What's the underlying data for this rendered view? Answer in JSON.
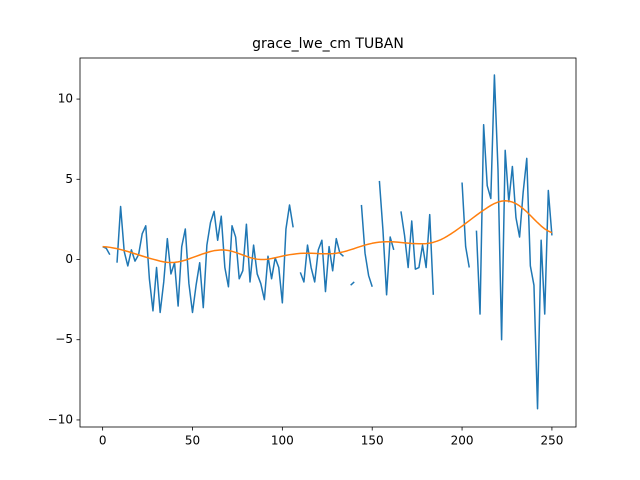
{
  "chart_data": {
    "type": "line",
    "title": "grace_lwe_cm TUBAN",
    "x": [
      0,
      2,
      4,
      6,
      8,
      10,
      12,
      14,
      16,
      18,
      20,
      22,
      24,
      26,
      28,
      30,
      32,
      34,
      36,
      38,
      40,
      42,
      44,
      46,
      48,
      50,
      52,
      54,
      56,
      58,
      60,
      62,
      64,
      66,
      68,
      70,
      72,
      74,
      76,
      78,
      80,
      82,
      84,
      86,
      88,
      90,
      92,
      94,
      96,
      98,
      100,
      102,
      104,
      106,
      108,
      110,
      112,
      114,
      116,
      118,
      120,
      122,
      124,
      126,
      128,
      130,
      132,
      134,
      136,
      138,
      140,
      142,
      144,
      146,
      148,
      150,
      152,
      154,
      156,
      158,
      160,
      162,
      164,
      166,
      168,
      170,
      172,
      174,
      176,
      178,
      180,
      182,
      184,
      186,
      188,
      190,
      192,
      194,
      196,
      198,
      200,
      202,
      204,
      206,
      208,
      210,
      212,
      214,
      216,
      218,
      220,
      222,
      224,
      226,
      228,
      230,
      232,
      234,
      236,
      238,
      240,
      242,
      244,
      246,
      248,
      250
    ],
    "series": [
      {
        "color": "#1f77b4",
        "values": [
          0.8,
          0.7,
          0.3,
          null,
          -0.2,
          3.3,
          0.5,
          -0.4,
          0.6,
          -0.1,
          0.3,
          1.6,
          2.1,
          -1.2,
          -3.2,
          -0.5,
          -3.3,
          -1.4,
          1.3,
          -0.9,
          -0.2,
          -2.9,
          0.8,
          1.9,
          -1.5,
          -3.3,
          -1.6,
          -0.2,
          -3.0,
          0.9,
          2.3,
          3.0,
          1.2,
          2.7,
          -0.5,
          -1.7,
          2.1,
          1.4,
          -1.2,
          -0.7,
          2.2,
          -1.4,
          0.9,
          -0.9,
          -1.5,
          -2.5,
          0.2,
          -1.2,
          0.1,
          -0.5,
          -2.7,
          1.9,
          3.4,
          2.0,
          null,
          -0.8,
          -1.4,
          0.9,
          -0.5,
          -1.4,
          0.6,
          1.2,
          -2.0,
          0.8,
          -0.7,
          1.3,
          0.4,
          0.2,
          null,
          -1.6,
          -1.4,
          null,
          3.4,
          0.4,
          -1.0,
          -1.7,
          null,
          4.9,
          1.8,
          -2.2,
          1.4,
          0.6,
          null,
          3.0,
          1.5,
          -0.5,
          2.4,
          -0.6,
          -0.5,
          0.9,
          -0.5,
          2.8,
          -2.2,
          null,
          null,
          null,
          null,
          null,
          -0.2,
          null,
          4.8,
          0.8,
          -0.5,
          null,
          1.8,
          -3.4,
          8.4,
          4.6,
          3.8,
          11.5,
          5.6,
          -5.0,
          6.8,
          3.6,
          5.8,
          2.6,
          1.4,
          4.2,
          6.3,
          -0.4,
          -1.6,
          -9.3,
          1.2,
          -3.4,
          4.3,
          1.5
        ]
      },
      {
        "color": "#ff7f0e",
        "values": [
          0.8,
          0.79,
          0.76,
          0.72,
          0.68,
          0.62,
          0.56,
          0.5,
          0.43,
          0.36,
          0.29,
          0.22,
          0.15,
          0.08,
          0.02,
          -0.04,
          -0.1,
          -0.15,
          -0.18,
          -0.19,
          -0.18,
          -0.15,
          -0.1,
          -0.04,
          0.04,
          0.12,
          0.2,
          0.28,
          0.36,
          0.43,
          0.5,
          0.55,
          0.58,
          0.6,
          0.59,
          0.56,
          0.51,
          0.44,
          0.36,
          0.28,
          0.2,
          0.12,
          0.06,
          0.02,
          0.0,
          0.0,
          0.02,
          0.06,
          0.11,
          0.16,
          0.21,
          0.26,
          0.3,
          0.33,
          0.36,
          0.38,
          0.39,
          0.39,
          0.39,
          0.38,
          0.37,
          0.36,
          0.36,
          0.36,
          0.37,
          0.39,
          0.43,
          0.48,
          0.54,
          0.61,
          0.68,
          0.76,
          0.83,
          0.9,
          0.96,
          1.01,
          1.05,
          1.08,
          1.1,
          1.11,
          1.11,
          1.1,
          1.08,
          1.06,
          1.04,
          1.02,
          1.0,
          0.99,
          0.98,
          0.98,
          0.99,
          1.02,
          1.07,
          1.14,
          1.23,
          1.34,
          1.47,
          1.61,
          1.76,
          1.92,
          2.08,
          2.25,
          2.42,
          2.59,
          2.76,
          2.92,
          3.08,
          3.23,
          3.37,
          3.49,
          3.58,
          3.64,
          3.66,
          3.64,
          3.58,
          3.48,
          3.34,
          3.17,
          2.97,
          2.75,
          2.52,
          2.3,
          2.09,
          1.91,
          1.77,
          1.67
        ]
      }
    ],
    "xlim": [
      -12.6,
      263.4
    ],
    "ylim": [
      -10.44,
      12.56
    ],
    "xticks": [
      0,
      50,
      100,
      150,
      200,
      250
    ],
    "yticks": [
      {
        "value": -10,
        "label": "−10"
      },
      {
        "value": -5,
        "label": "−5"
      },
      0,
      5,
      10
    ]
  }
}
